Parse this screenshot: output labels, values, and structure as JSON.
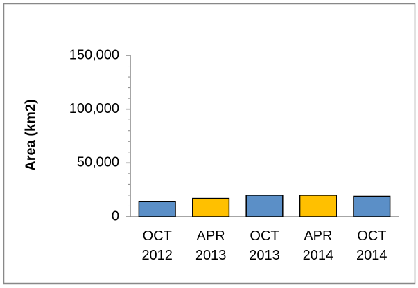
{
  "chart_data": {
    "type": "bar",
    "y_label": "Area (km2)",
    "categories": [
      "OCT 2012",
      "APR 2013",
      "OCT 2013",
      "APR 2014",
      "OCT 2014"
    ],
    "values": [
      14000,
      17000,
      20000,
      20000,
      19000
    ],
    "colors": [
      "#5b8fc7",
      "#ffc000",
      "#5b8fc7",
      "#ffc000",
      "#5b8fc7"
    ],
    "ylim": [
      0,
      150000
    ],
    "yticks": [
      0,
      {
        "value": 50000,
        "label": "50,000"
      },
      {
        "value": 100000,
        "label": "100,000"
      },
      {
        "value": 150000,
        "label": "150,000"
      }
    ],
    "grid": false
  }
}
